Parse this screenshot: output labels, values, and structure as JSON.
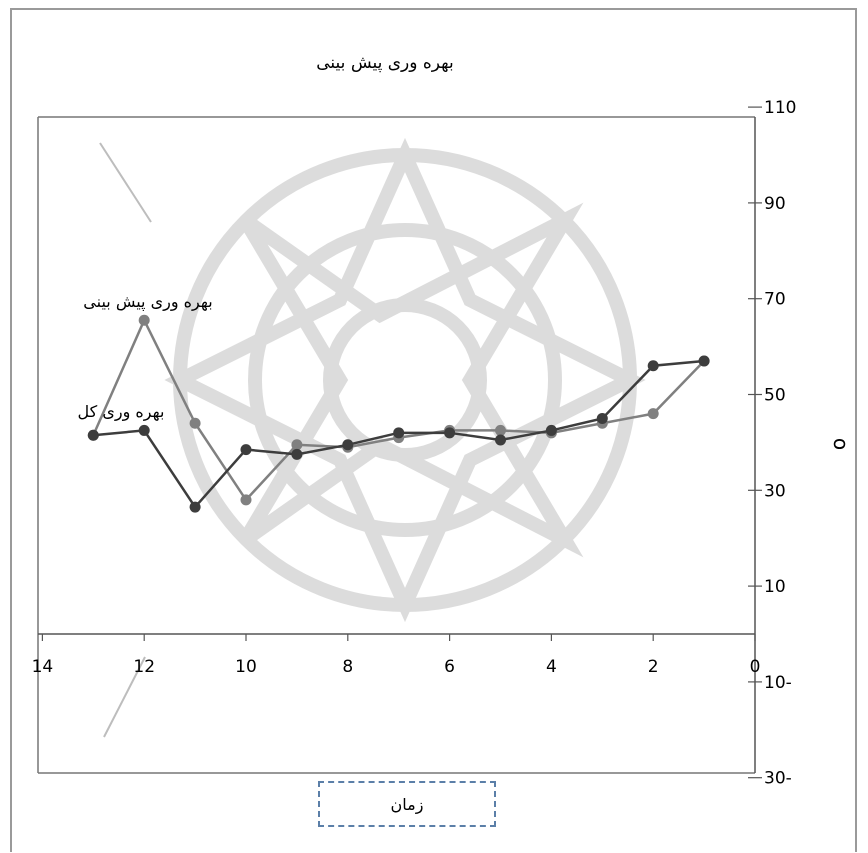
{
  "chart_data": {
    "type": "line",
    "title": "بهره وری پیش بینی",
    "xlabel": "زمان",
    "ylabel": "o",
    "x_axis": {
      "min": 0,
      "max": 14,
      "reversed": true,
      "ticks": [
        "0",
        "2",
        "4",
        "6",
        "8",
        "10",
        "12",
        "14"
      ],
      "tick_values": [
        0,
        2,
        4,
        6,
        8,
        10,
        12,
        14
      ]
    },
    "y_axis": {
      "min": -30,
      "max": 110,
      "position": "right",
      "ticks": [
        "110",
        "90",
        "70",
        "50",
        "30",
        "10",
        "10-",
        "30-"
      ],
      "tick_values": [
        110,
        90,
        70,
        50,
        30,
        10,
        -10,
        -30
      ]
    },
    "grid": false,
    "series": [
      {
        "name": "بهره وری پیش بینی",
        "color": "#808080",
        "x": [
          13,
          12,
          11,
          10,
          9,
          8,
          7,
          6,
          5,
          4,
          3,
          2,
          1
        ],
        "y": [
          41.5,
          65.5,
          44,
          28,
          39.5,
          39,
          41,
          42.5,
          42.5,
          42,
          44,
          46,
          57
        ]
      },
      {
        "name": "بهره وری کل",
        "color": "#3d3d3d",
        "x": [
          13,
          12,
          11,
          10,
          9,
          8,
          7,
          6,
          5,
          4,
          3,
          2,
          1
        ],
        "y": [
          41.5,
          42.5,
          26.5,
          38.5,
          37.5,
          39.5,
          42,
          42,
          40.5,
          42.5,
          45,
          56,
          57
        ]
      }
    ],
    "annotations": [
      {
        "text": "بهره وری پیش بینی"
      },
      {
        "text": "بهره وری کل"
      }
    ]
  }
}
